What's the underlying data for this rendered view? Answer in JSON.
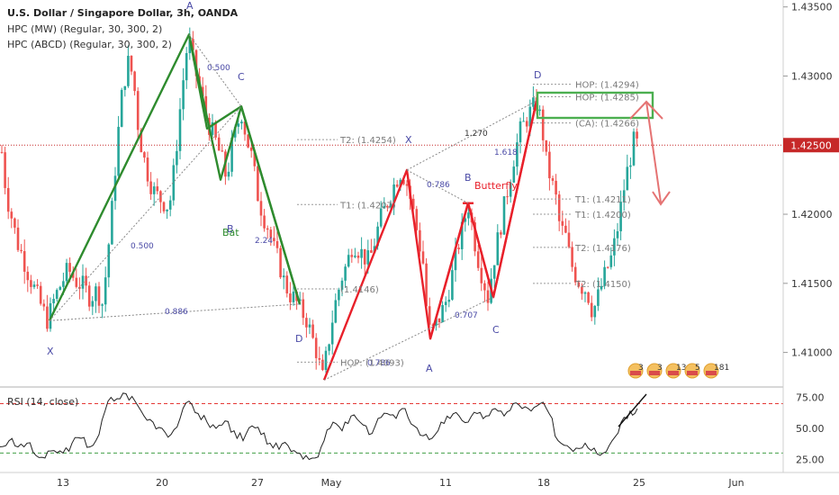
{
  "header": {
    "title": "U.S. Dollar / Singapore Dollar, 3h, OANDA",
    "indicator1": "HPC (MW) (Regular, 30, 300, 2)",
    "indicator2": "HPC (ABCD) (Regular, 30, 300, 2)",
    "rsi_label": "RSI (14, close)"
  },
  "colors": {
    "up": "#26a69a",
    "down": "#ef5350",
    "green_pattern": "#2e8b2e",
    "red_pattern": "#e8202a",
    "price_line": "#c62828",
    "dotted": "#888888",
    "label_blue": "#4a4aa6"
  },
  "chart_data": {
    "type": "candlestick",
    "symbol": "USDSGD",
    "timeframe": "3h",
    "x_ticks": [
      "13",
      "20",
      "27",
      "May",
      "11",
      "18",
      "25",
      "Jun"
    ],
    "y_ticks": [
      "1.43500",
      "1.43000",
      "1.42500",
      "1.42000",
      "1.41500",
      "1.41000"
    ],
    "ylim": [
      1.4075,
      1.4355
    ],
    "current_price": "1.42500",
    "current_price_value": 1.425,
    "price_path": [
      [
        0,
        1.4265
      ],
      [
        3,
        1.4235
      ],
      [
        8,
        1.4212
      ],
      [
        14,
        1.4195
      ],
      [
        19,
        1.418
      ],
      [
        25,
        1.417
      ],
      [
        31,
        1.4158
      ],
      [
        37,
        1.4148
      ],
      [
        43,
        1.4138
      ],
      [
        48,
        1.413
      ],
      [
        53,
        1.4123
      ],
      [
        60,
        1.4138
      ],
      [
        68,
        1.415
      ],
      [
        76,
        1.416
      ],
      [
        84,
        1.4152
      ],
      [
        92,
        1.4148
      ],
      [
        100,
        1.414
      ],
      [
        108,
        1.4145
      ],
      [
        114,
        1.4135
      ],
      [
        118,
        1.416
      ],
      [
        124,
        1.42
      ],
      [
        130,
        1.425
      ],
      [
        136,
        1.429
      ],
      [
        142,
        1.431
      ],
      [
        148,
        1.43
      ],
      [
        154,
        1.426
      ],
      [
        160,
        1.424
      ],
      [
        166,
        1.4225
      ],
      [
        172,
        1.4215
      ],
      [
        180,
        1.421
      ],
      [
        188,
        1.4205
      ],
      [
        194,
        1.4235
      ],
      [
        199,
        1.427
      ],
      [
        204,
        1.43
      ],
      [
        209,
        1.4328
      ],
      [
        214,
        1.4312
      ],
      [
        219,
        1.4298
      ],
      [
        224,
        1.4285
      ],
      [
        229,
        1.427
      ],
      [
        234,
        1.4262
      ],
      [
        240,
        1.4252
      ],
      [
        246,
        1.424
      ],
      [
        252,
        1.4225
      ],
      [
        256,
        1.4245
      ],
      [
        262,
        1.426
      ],
      [
        268,
        1.4275
      ],
      [
        274,
        1.4255
      ],
      [
        280,
        1.424
      ],
      [
        286,
        1.4215
      ],
      [
        292,
        1.42
      ],
      [
        298,
        1.419
      ],
      [
        304,
        1.4175
      ],
      [
        310,
        1.4165
      ],
      [
        316,
        1.415
      ],
      [
        322,
        1.4142
      ],
      [
        328,
        1.4138
      ],
      [
        334,
        1.413
      ],
      [
        340,
        1.4125
      ],
      [
        346,
        1.4112
      ],
      [
        352,
        1.41
      ],
      [
        358,
        1.408
      ],
      [
        362,
        1.4095
      ],
      [
        368,
        1.412
      ],
      [
        374,
        1.414
      ],
      [
        380,
        1.4155
      ],
      [
        386,
        1.4165
      ],
      [
        392,
        1.418
      ],
      [
        398,
        1.4175
      ],
      [
        404,
        1.417
      ],
      [
        410,
        1.4165
      ],
      [
        416,
        1.418
      ],
      [
        422,
        1.4195
      ],
      [
        428,
        1.4205
      ],
      [
        434,
        1.4215
      ],
      [
        440,
        1.4225
      ],
      [
        446,
        1.4232
      ],
      [
        452,
        1.4222
      ],
      [
        458,
        1.4205
      ],
      [
        464,
        1.4185
      ],
      [
        470,
        1.4165
      ],
      [
        474,
        1.413
      ],
      [
        478,
        1.4112
      ],
      [
        484,
        1.412
      ],
      [
        490,
        1.4128
      ],
      [
        496,
        1.4138
      ],
      [
        502,
        1.4155
      ],
      [
        508,
        1.4175
      ],
      [
        514,
        1.419
      ],
      [
        520,
        1.4208
      ],
      [
        526,
        1.4185
      ],
      [
        532,
        1.4165
      ],
      [
        538,
        1.415
      ],
      [
        542,
        1.414
      ],
      [
        548,
        1.4165
      ],
      [
        554,
        1.4185
      ],
      [
        560,
        1.4205
      ],
      [
        566,
        1.4225
      ],
      [
        572,
        1.4245
      ],
      [
        578,
        1.426
      ],
      [
        584,
        1.4268
      ],
      [
        590,
        1.4275
      ],
      [
        596,
        1.428
      ],
      [
        602,
        1.4265
      ],
      [
        606,
        1.424
      ],
      [
        612,
        1.4225
      ],
      [
        618,
        1.421
      ],
      [
        622,
        1.419
      ],
      [
        628,
        1.4185
      ],
      [
        634,
        1.4165
      ],
      [
        640,
        1.4155
      ],
      [
        646,
        1.4148
      ],
      [
        652,
        1.4145
      ],
      [
        658,
        1.413
      ],
      [
        662,
        1.4135
      ],
      [
        668,
        1.4148
      ],
      [
        674,
        1.416
      ],
      [
        680,
        1.417
      ],
      [
        686,
        1.419
      ],
      [
        692,
        1.4215
      ],
      [
        698,
        1.4235
      ],
      [
        704,
        1.4252
      ],
      [
        708,
        1.425
      ]
    ],
    "rsi": {
      "yticks": [
        "75.00",
        "50.00",
        "25.00"
      ],
      "ylim": [
        15,
        82
      ],
      "levels": [
        70,
        30
      ],
      "path": [
        [
          0,
          35
        ],
        [
          10,
          40
        ],
        [
          20,
          35
        ],
        [
          30,
          38
        ],
        [
          40,
          28
        ],
        [
          50,
          26
        ],
        [
          60,
          32
        ],
        [
          70,
          30
        ],
        [
          80,
          38
        ],
        [
          90,
          42
        ],
        [
          100,
          35
        ],
        [
          110,
          45
        ],
        [
          120,
          72
        ],
        [
          130,
          74
        ],
        [
          140,
          78
        ],
        [
          150,
          72
        ],
        [
          160,
          60
        ],
        [
          170,
          55
        ],
        [
          180,
          50
        ],
        [
          190,
          45
        ],
        [
          200,
          58
        ],
        [
          210,
          72
        ],
        [
          220,
          62
        ],
        [
          230,
          55
        ],
        [
          240,
          50
        ],
        [
          250,
          56
        ],
        [
          260,
          48
        ],
        [
          270,
          40
        ],
        [
          280,
          52
        ],
        [
          290,
          45
        ],
        [
          300,
          38
        ],
        [
          310,
          33
        ],
        [
          320,
          36
        ],
        [
          330,
          30
        ],
        [
          340,
          28
        ],
        [
          350,
          26
        ],
        [
          360,
          40
        ],
        [
          370,
          55
        ],
        [
          380,
          48
        ],
        [
          390,
          60
        ],
        [
          400,
          55
        ],
        [
          410,
          45
        ],
        [
          420,
          58
        ],
        [
          430,
          62
        ],
        [
          440,
          58
        ],
        [
          450,
          66
        ],
        [
          460,
          52
        ],
        [
          470,
          44
        ],
        [
          480,
          42
        ],
        [
          490,
          55
        ],
        [
          500,
          58
        ],
        [
          510,
          60
        ],
        [
          520,
          55
        ],
        [
          530,
          62
        ],
        [
          540,
          60
        ],
        [
          550,
          66
        ],
        [
          560,
          60
        ],
        [
          570,
          70
        ],
        [
          580,
          66
        ],
        [
          590,
          64
        ],
        [
          600,
          70
        ],
        [
          610,
          62
        ],
        [
          620,
          40
        ],
        [
          630,
          36
        ],
        [
          640,
          34
        ],
        [
          650,
          38
        ],
        [
          660,
          34
        ],
        [
          670,
          30
        ],
        [
          680,
          40
        ],
        [
          690,
          55
        ],
        [
          700,
          64
        ],
        [
          708,
          66
        ]
      ]
    },
    "green_pattern_points": {
      "xabcd_mw": [
        [
          55,
          1.4123
        ],
        [
          210,
          1.433
        ],
        [
          230,
          1.4262
        ],
        [
          268,
          1.4278
        ],
        [
          333,
          1.4135
        ]
      ],
      "labels": {
        "X": "X",
        "A": "A",
        "B": "B",
        "C": "C",
        "D": "D"
      }
    },
    "red_pattern_points": {
      "butterfly": [
        [
          360,
          1.408
        ],
        [
          452,
          1.4232
        ],
        [
          478,
          1.411
        ],
        [
          520,
          1.4208
        ],
        [
          548,
          1.414
        ],
        [
          596,
          1.4282
        ]
      ],
      "labels": {
        "X": "X",
        "A": "A",
        "B": "B",
        "C": "C",
        "D": "D",
        "name": "Butterfly"
      }
    },
    "annotations": {
      "green_left": {
        "r1": "0.500",
        "r2": "0.500",
        "r3": "0.886",
        "r4": "2.24",
        "bat": "Bat"
      },
      "red_right": {
        "r1": "1.270",
        "r2": "1.618",
        "r3": "0.786",
        "r4": "0.707",
        "r5": "0.786",
        "butterfly": "Butterfly"
      },
      "levels_left": [
        {
          "text": "T2: (1.4254)",
          "price": 1.4254
        },
        {
          "text": "T1: (1.4207)",
          "price": 1.4207
        },
        {
          "text": "(1.4146)",
          "price": 1.4146
        },
        {
          "text": "HOP: (1.4093)",
          "price": 1.4093
        }
      ],
      "levels_right": [
        {
          "text": "HOP: (1.4294)",
          "price": 1.4294
        },
        {
          "text": "HOP: (1.4285)",
          "price": 1.4285
        },
        {
          "text": "(CA): (1.4266)",
          "price": 1.4266
        },
        {
          "text": "T1: (1.4211)",
          "price": 1.4211
        },
        {
          "text": "T1: (1.4200)",
          "price": 1.42
        },
        {
          "text": "T2: (1.4176)",
          "price": 1.4176
        },
        {
          "text": "T2: (1.4150)",
          "price": 1.415
        }
      ]
    },
    "events": [
      "3",
      "3",
      "13",
      "5",
      "181"
    ]
  }
}
